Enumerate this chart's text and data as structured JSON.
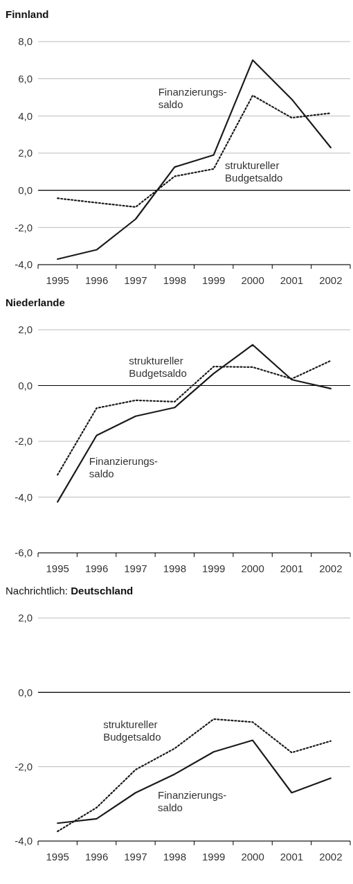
{
  "chart_data": [
    {
      "type": "line",
      "title": "Finnland",
      "categories": [
        "1995",
        "1996",
        "1997",
        "1998",
        "1999",
        "2000",
        "2001",
        "2002"
      ],
      "ylim": [
        -4,
        8
      ],
      "yticks": [
        {
          "value": -4,
          "label": "-4,0"
        },
        {
          "value": -2,
          "label": "-2,0"
        },
        {
          "value": 0,
          "label": "0,0"
        },
        {
          "value": 2,
          "label": "2,0"
        },
        {
          "value": 4,
          "label": "4,0"
        },
        {
          "value": 6,
          "label": "6,0"
        },
        {
          "value": 8,
          "label": "8,0"
        }
      ],
      "grid": "y",
      "marker": "none",
      "ref_lines": [
        {
          "axis": "y",
          "value": 0,
          "color": "#000000"
        }
      ],
      "series": [
        {
          "name": "Finanzierungs- saldo",
          "color": "#1a1a1a",
          "line_style": "solid",
          "values": [
            -3.7,
            -3.2,
            -1.55,
            1.25,
            1.9,
            7.0,
            4.9,
            2.3
          ]
        },
        {
          "name": "struktureller Budgetsaldo",
          "color": "#1a1a1a",
          "line_style": "dotted",
          "values": [
            -0.43,
            -0.67,
            -0.9,
            0.75,
            1.15,
            5.1,
            3.9,
            4.15
          ]
        }
      ]
    },
    {
      "type": "line",
      "title": "Niederlande",
      "categories": [
        "1995",
        "1996",
        "1997",
        "1998",
        "1999",
        "2000",
        "2001",
        "2002"
      ],
      "ylim": [
        -6,
        2
      ],
      "yticks": [
        {
          "value": -6,
          "label": "-6,0"
        },
        {
          "value": -4,
          "label": "-4,0"
        },
        {
          "value": -2,
          "label": "-2,0"
        },
        {
          "value": 0,
          "label": "0,0"
        },
        {
          "value": 2,
          "label": "2,0"
        }
      ],
      "grid": "y",
      "marker": "none",
      "ref_lines": [
        {
          "axis": "y",
          "value": 0,
          "color": "#000000"
        }
      ],
      "series": [
        {
          "name": "Finanzierungs- saldo",
          "color": "#1a1a1a",
          "line_style": "solid",
          "values": [
            -4.17,
            -1.79,
            -1.1,
            -0.79,
            0.43,
            1.46,
            0.21,
            -0.11
          ]
        },
        {
          "name": "struktureller Budgetsaldo",
          "color": "#1a1a1a",
          "line_style": "dotted",
          "values": [
            -3.2,
            -0.81,
            -0.53,
            -0.58,
            0.68,
            0.66,
            0.24,
            0.89
          ]
        }
      ]
    },
    {
      "type": "line",
      "title": "Nachrichtlich: Deutschland",
      "categories": [
        "1995",
        "1996",
        "1997",
        "1998",
        "1999",
        "2000",
        "2001",
        "2002"
      ],
      "ylim": [
        -4,
        2
      ],
      "yticks": [
        {
          "value": -4,
          "label": "-4,0"
        },
        {
          "value": -2,
          "label": "-2,0"
        },
        {
          "value": 0,
          "label": "0,0"
        },
        {
          "value": 2,
          "label": "2,0"
        }
      ],
      "grid": "y",
      "marker": "none",
      "ref_lines": [
        {
          "axis": "y",
          "value": 0,
          "color": "#000000"
        }
      ],
      "series": [
        {
          "name": "Finanzierungs- saldo",
          "color": "#1a1a1a",
          "line_style": "solid",
          "values": [
            -3.52,
            -3.4,
            -2.7,
            -2.2,
            -1.6,
            -1.29,
            -2.7,
            -2.31
          ]
        },
        {
          "name": "struktureller Budgetsaldo",
          "color": "#1a1a1a",
          "line_style": "dotted",
          "values": [
            -3.74,
            -3.1,
            -2.08,
            -1.51,
            -0.72,
            -0.8,
            -1.62,
            -1.31
          ]
        }
      ]
    }
  ]
}
